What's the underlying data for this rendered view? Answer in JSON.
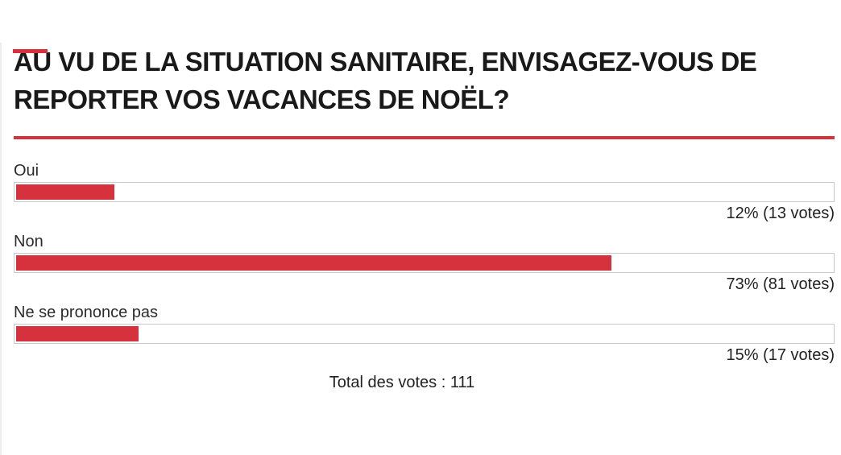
{
  "accent_color": "#d6323e",
  "poll": {
    "question_line1": "AU VU DE LA SITUATION SANITAIRE, ENVISAGEZ-VOUS DE",
    "question_line2": "REPORTER VOS VACANCES DE NOËL?",
    "options": [
      {
        "label": "Oui",
        "percent": 12,
        "votes": 13,
        "result": "12% (13 votes)"
      },
      {
        "label": "Non",
        "percent": 73,
        "votes": 81,
        "result": "73% (81 votes)"
      },
      {
        "label": "Ne se prononce pas",
        "percent": 15,
        "votes": 17,
        "result": "15% (17 votes)"
      }
    ],
    "total_label": "Total des votes : 111",
    "total_votes": 111
  },
  "chart_data": {
    "type": "bar",
    "orientation": "horizontal",
    "title": "AU VU DE LA SITUATION SANITAIRE, ENVISAGEZ-VOUS DE REPORTER VOS VACANCES DE NOËL?",
    "categories": [
      "Oui",
      "Non",
      "Ne se prononce pas"
    ],
    "values": [
      12,
      73,
      15
    ],
    "votes": [
      13,
      81,
      17
    ],
    "value_unit": "%",
    "xlim": [
      0,
      100
    ],
    "data_labels": [
      "12% (13 votes)",
      "73% (81 votes)",
      "15% (17 votes)"
    ],
    "footer": "Total des votes : 111",
    "bar_color": "#d6323e",
    "track_color": "#ffffff",
    "track_border_color": "#c9c9c9",
    "grid": false,
    "legend": false
  }
}
